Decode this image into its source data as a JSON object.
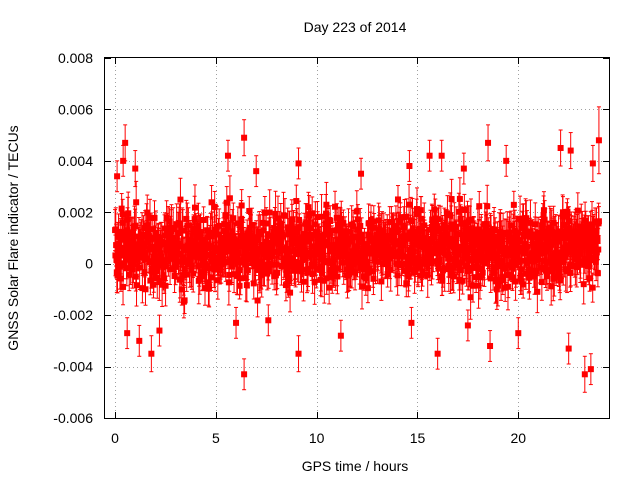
{
  "chart_data": {
    "type": "scatter",
    "title": "Day 223 of 2014",
    "xlabel": "GPS time / hours",
    "ylabel": "GNSS Solar Flare indicator / TECUs",
    "xlim": [
      -0.5,
      24.5
    ],
    "ylim": [
      -0.006,
      0.008
    ],
    "x_ticks": [
      0,
      5,
      10,
      15,
      20
    ],
    "x_tick_labels": [
      "0",
      "5",
      "10",
      "15",
      "20"
    ],
    "y_ticks": [
      -0.006,
      -0.004,
      -0.002,
      0,
      0.002,
      0.004,
      0.006,
      0.008
    ],
    "y_tick_labels": [
      "-0.006",
      "-0.004",
      "-0.002",
      "0",
      "0.002",
      "0.004",
      "0.006",
      "0.008"
    ],
    "grid": true,
    "marker_color": "#ff0000",
    "series": [
      {
        "marker": "filled-square",
        "error_bars": true,
        "x_range": [
          0,
          24
        ],
        "typical_y_range": [
          -0.001,
          0.002
        ],
        "points": [
          {
            "x": 0.1,
            "y": 0.0034,
            "err": 0.0006
          },
          {
            "x": 0.4,
            "y": 0.004,
            "err": 0.0006
          },
          {
            "x": 0.5,
            "y": 0.0047,
            "err": 0.0007
          },
          {
            "x": 0.6,
            "y": -0.0027,
            "err": 0.0006
          },
          {
            "x": 1.2,
            "y": -0.003,
            "err": 0.0006
          },
          {
            "x": 1.8,
            "y": -0.0035,
            "err": 0.0007
          },
          {
            "x": 1.0,
            "y": 0.0037,
            "err": 0.0007
          },
          {
            "x": 2.2,
            "y": -0.0026,
            "err": 0.0006
          },
          {
            "x": 5.6,
            "y": 0.0042,
            "err": 0.0006
          },
          {
            "x": 6.0,
            "y": -0.0023,
            "err": 0.0006
          },
          {
            "x": 6.4,
            "y": 0.0049,
            "err": 0.0007
          },
          {
            "x": 6.4,
            "y": -0.0043,
            "err": 0.0006
          },
          {
            "x": 7.0,
            "y": 0.0036,
            "err": 0.0006
          },
          {
            "x": 7.6,
            "y": -0.0022,
            "err": 0.0006
          },
          {
            "x": 9.1,
            "y": 0.0039,
            "err": 0.0006
          },
          {
            "x": 9.1,
            "y": -0.0035,
            "err": 0.0007
          },
          {
            "x": 11.2,
            "y": -0.0028,
            "err": 0.0006
          },
          {
            "x": 12.2,
            "y": 0.0035,
            "err": 0.0006
          },
          {
            "x": 14.6,
            "y": 0.0038,
            "err": 0.0006
          },
          {
            "x": 14.7,
            "y": -0.0023,
            "err": 0.0006
          },
          {
            "x": 15.6,
            "y": 0.0042,
            "err": 0.0006
          },
          {
            "x": 16.0,
            "y": -0.0035,
            "err": 0.0006
          },
          {
            "x": 16.2,
            "y": 0.0042,
            "err": 0.0006
          },
          {
            "x": 17.3,
            "y": 0.0037,
            "err": 0.0006
          },
          {
            "x": 17.5,
            "y": -0.0024,
            "err": 0.0006
          },
          {
            "x": 18.5,
            "y": 0.0047,
            "err": 0.0007
          },
          {
            "x": 18.6,
            "y": -0.0032,
            "err": 0.0006
          },
          {
            "x": 19.4,
            "y": 0.004,
            "err": 0.0006
          },
          {
            "x": 20.0,
            "y": -0.0027,
            "err": 0.0006
          },
          {
            "x": 22.1,
            "y": 0.0045,
            "err": 0.0007
          },
          {
            "x": 22.6,
            "y": 0.0044,
            "err": 0.0007
          },
          {
            "x": 22.5,
            "y": -0.0033,
            "err": 0.0006
          },
          {
            "x": 23.3,
            "y": -0.0043,
            "err": 0.0007
          },
          {
            "x": 23.6,
            "y": -0.0041,
            "err": 0.0006
          },
          {
            "x": 23.7,
            "y": 0.0039,
            "err": 0.0007
          },
          {
            "x": 24.0,
            "y": 0.0048,
            "err": 0.0013
          }
        ]
      }
    ]
  }
}
